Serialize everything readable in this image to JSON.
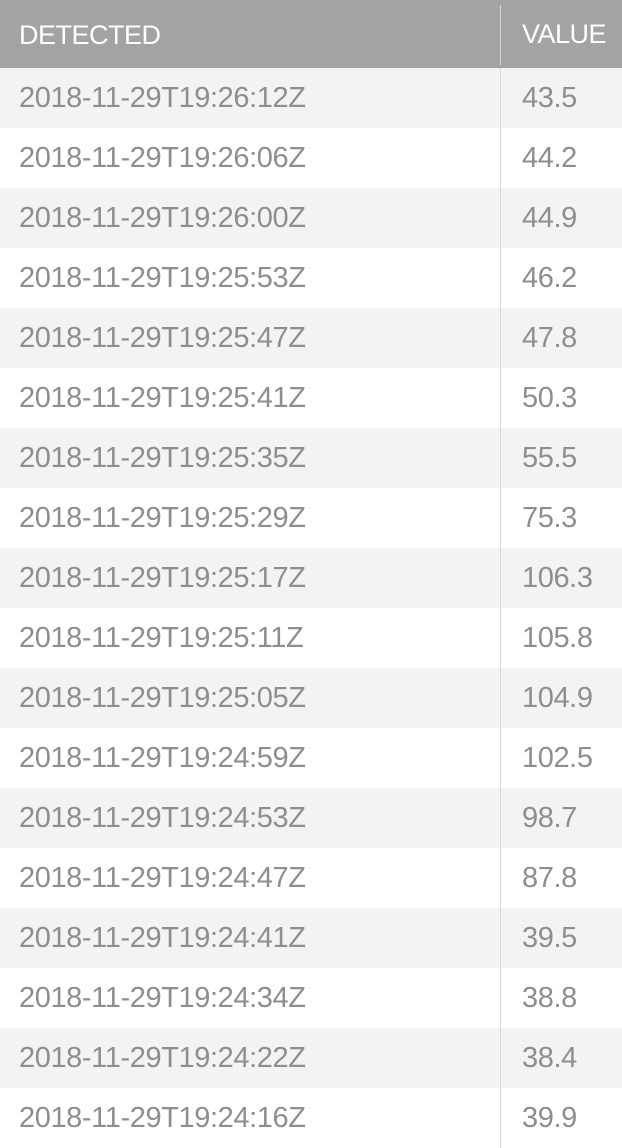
{
  "table": {
    "columns": {
      "detected": "DETECTED",
      "value": "VALUE"
    },
    "rows": [
      {
        "detected": "2018-11-29T19:26:12Z",
        "value": "43.5"
      },
      {
        "detected": "2018-11-29T19:26:06Z",
        "value": "44.2"
      },
      {
        "detected": "2018-11-29T19:26:00Z",
        "value": "44.9"
      },
      {
        "detected": "2018-11-29T19:25:53Z",
        "value": "46.2"
      },
      {
        "detected": "2018-11-29T19:25:47Z",
        "value": "47.8"
      },
      {
        "detected": "2018-11-29T19:25:41Z",
        "value": "50.3"
      },
      {
        "detected": "2018-11-29T19:25:35Z",
        "value": "55.5"
      },
      {
        "detected": "2018-11-29T19:25:29Z",
        "value": "75.3"
      },
      {
        "detected": "2018-11-29T19:25:17Z",
        "value": "106.3"
      },
      {
        "detected": "2018-11-29T19:25:11Z",
        "value": "105.8"
      },
      {
        "detected": "2018-11-29T19:25:05Z",
        "value": "104.9"
      },
      {
        "detected": "2018-11-29T19:24:59Z",
        "value": "102.5"
      },
      {
        "detected": "2018-11-29T19:24:53Z",
        "value": "98.7"
      },
      {
        "detected": "2018-11-29T19:24:47Z",
        "value": "87.8"
      },
      {
        "detected": "2018-11-29T19:24:41Z",
        "value": "39.5"
      },
      {
        "detected": "2018-11-29T19:24:34Z",
        "value": "38.8"
      },
      {
        "detected": "2018-11-29T19:24:22Z",
        "value": "38.4"
      },
      {
        "detected": "2018-11-29T19:24:16Z",
        "value": "39.9"
      }
    ]
  },
  "colors": {
    "header_bg": "#a2a3a5",
    "header_text": "#ffffff",
    "row_text": "#8e8e90",
    "row_alt_bg": "#f3f3f3",
    "row_bg": "#ffffff"
  }
}
